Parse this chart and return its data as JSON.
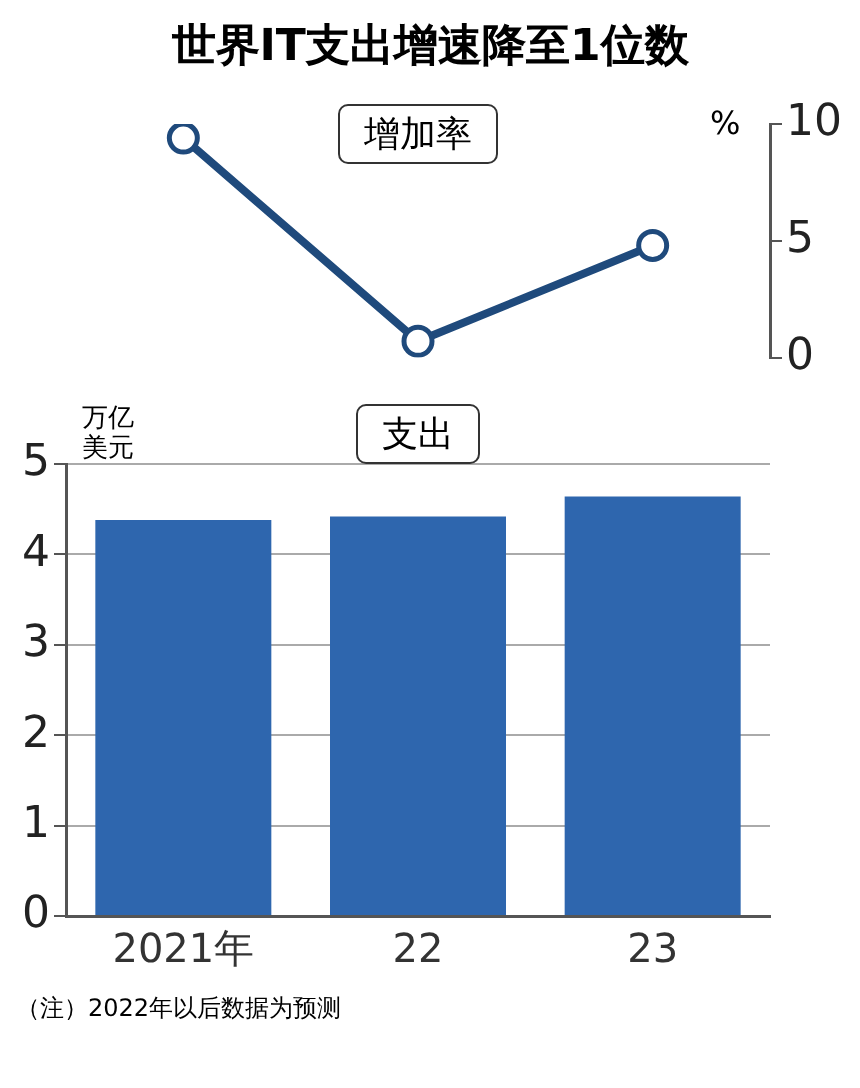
{
  "chart_data": [
    {
      "type": "line",
      "title": "世界IT支出增速降至1位数",
      "subtitle": "增加率",
      "ylabel": "%",
      "categories": [
        null,
        null,
        null
      ],
      "series": [
        {
          "color": "#1f4a7c",
          "values": [
            9.4,
            0.7,
            4.8
          ]
        }
      ],
      "ylim": [
        0,
        10
      ],
      "yticks": [
        0,
        5,
        10
      ],
      "grid": false,
      "legend": false,
      "tick_labels": "y",
      "marker": "circle",
      "line_style": "solid"
    },
    {
      "type": "bar",
      "title": "支出",
      "ylabel": "万亿美元",
      "categories": [
        "2021年",
        "22",
        "23"
      ],
      "series": [
        {
          "color": "#2e66ae",
          "values": [
            4.38,
            4.42,
            4.64
          ]
        }
      ],
      "ylim": [
        0,
        5
      ],
      "yticks": [
        0,
        1,
        2,
        3,
        4,
        5
      ],
      "grid": "y",
      "legend": false,
      "annotations": [
        "（注）2022年以后数据为预测"
      ]
    }
  ]
}
